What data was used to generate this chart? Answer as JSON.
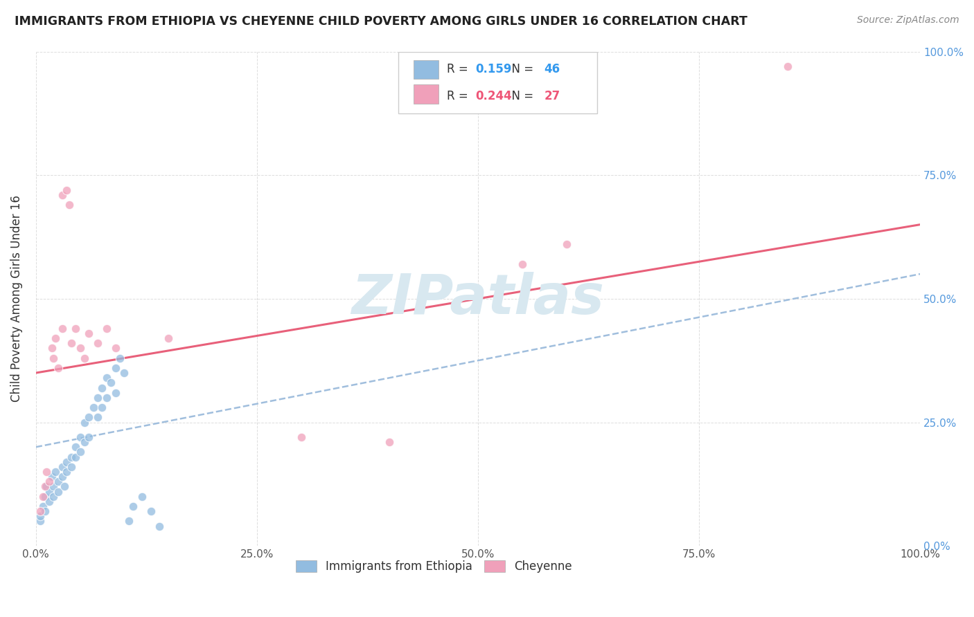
{
  "title": "IMMIGRANTS FROM ETHIOPIA VS CHEYENNE CHILD POVERTY AMONG GIRLS UNDER 16 CORRELATION CHART",
  "source": "Source: ZipAtlas.com",
  "ylabel": "Child Poverty Among Girls Under 16",
  "xlim": [
    0,
    100
  ],
  "ylim": [
    0,
    100
  ],
  "xtick_vals": [
    0,
    25,
    50,
    75,
    100
  ],
  "xtick_labels": [
    "0.0%",
    "25.0%",
    "50.0%",
    "75.0%",
    "100.0%"
  ],
  "ytick_vals": [
    0,
    25,
    50,
    75,
    100
  ],
  "ytick_labels_right": [
    "0.0%",
    "25.0%",
    "50.0%",
    "75.0%",
    "100.0%"
  ],
  "blue_R": "0.159",
  "blue_N": "46",
  "pink_R": "0.244",
  "pink_N": "27",
  "blue_color": "#92bce0",
  "pink_color": "#f0a0ba",
  "trend_blue_color": "#a0bedd",
  "trend_pink_color": "#e8607a",
  "blue_scatter": [
    [
      0.5,
      5
    ],
    [
      0.5,
      6
    ],
    [
      0.8,
      8
    ],
    [
      1.0,
      10
    ],
    [
      1.0,
      7
    ],
    [
      1.2,
      12
    ],
    [
      1.5,
      11
    ],
    [
      1.5,
      9
    ],
    [
      1.8,
      14
    ],
    [
      2.0,
      12
    ],
    [
      2.0,
      10
    ],
    [
      2.2,
      15
    ],
    [
      2.5,
      13
    ],
    [
      2.5,
      11
    ],
    [
      3.0,
      16
    ],
    [
      3.0,
      14
    ],
    [
      3.2,
      12
    ],
    [
      3.5,
      17
    ],
    [
      3.5,
      15
    ],
    [
      4.0,
      18
    ],
    [
      4.0,
      16
    ],
    [
      4.5,
      20
    ],
    [
      4.5,
      18
    ],
    [
      5.0,
      22
    ],
    [
      5.0,
      19
    ],
    [
      5.5,
      25
    ],
    [
      5.5,
      21
    ],
    [
      6.0,
      26
    ],
    [
      6.0,
      22
    ],
    [
      6.5,
      28
    ],
    [
      7.0,
      30
    ],
    [
      7.0,
      26
    ],
    [
      7.5,
      32
    ],
    [
      7.5,
      28
    ],
    [
      8.0,
      34
    ],
    [
      8.0,
      30
    ],
    [
      8.5,
      33
    ],
    [
      9.0,
      36
    ],
    [
      9.0,
      31
    ],
    [
      9.5,
      38
    ],
    [
      10.0,
      35
    ],
    [
      10.5,
      5
    ],
    [
      11.0,
      8
    ],
    [
      12.0,
      10
    ],
    [
      13.0,
      7
    ],
    [
      14.0,
      4
    ]
  ],
  "pink_scatter": [
    [
      0.5,
      7
    ],
    [
      0.8,
      10
    ],
    [
      1.0,
      12
    ],
    [
      1.2,
      15
    ],
    [
      1.5,
      13
    ],
    [
      1.8,
      40
    ],
    [
      2.0,
      38
    ],
    [
      2.2,
      42
    ],
    [
      2.5,
      36
    ],
    [
      3.0,
      44
    ],
    [
      3.0,
      71
    ],
    [
      3.5,
      72
    ],
    [
      3.8,
      69
    ],
    [
      4.0,
      41
    ],
    [
      4.5,
      44
    ],
    [
      5.0,
      40
    ],
    [
      5.5,
      38
    ],
    [
      6.0,
      43
    ],
    [
      7.0,
      41
    ],
    [
      8.0,
      44
    ],
    [
      9.0,
      40
    ],
    [
      30.0,
      22
    ],
    [
      40.0,
      21
    ],
    [
      55.0,
      57
    ],
    [
      60.0,
      61
    ],
    [
      85.0,
      97
    ],
    [
      15.0,
      42
    ]
  ],
  "background_color": "#ffffff",
  "grid_color": "#dddddd"
}
